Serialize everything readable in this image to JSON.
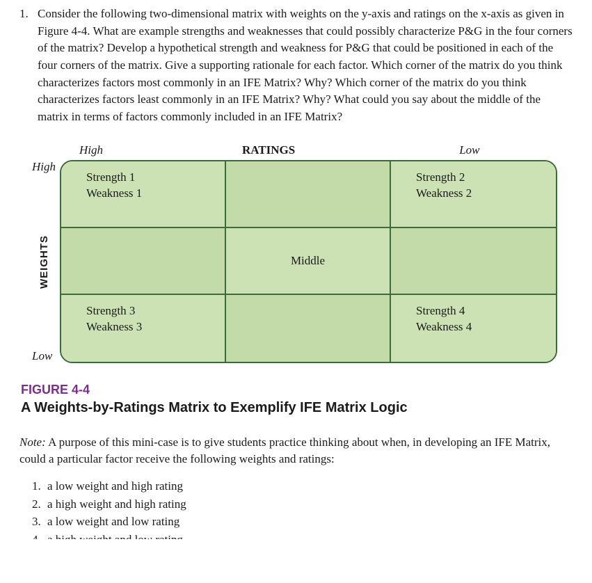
{
  "question": {
    "number": "1.",
    "text": "Consider the following two-dimensional matrix with weights on the y-axis and ratings on the x-axis as given in Figure 4-4. What are example strengths and weaknesses that could possibly characterize P&G in the four corners of the matrix? Develop a hypothetical strength and weakness for P&G that could be positioned in each of the four corners of the matrix. Give a supporting rationale for each factor. Which corner of the matrix do you think characterizes factors most commonly in an IFE Matrix? Why? Which corner of the matrix do you think characterizes factors least commonly in an IFE Matrix? Why? What could you say about the middle of the matrix in terms of factors commonly included in an IFE Matrix?"
  },
  "matrix": {
    "ratings_high": "High",
    "ratings_title": "RATINGS",
    "ratings_low": "Low",
    "weights_high": "High",
    "weights_label": "WEIGHTS",
    "weights_low": "Low",
    "colors": {
      "cell_a": "#cde2b4",
      "cell_b": "#c3dba8",
      "border": "#3a6b3a"
    },
    "cells": {
      "tl_s": "Strength 1",
      "tl_w": "Weakness 1",
      "tr_s": "Strength 2",
      "tr_w": "Weakness 2",
      "middle": "Middle",
      "bl_s": "Strength 3",
      "bl_w": "Weakness 3",
      "br_s": "Strength 4",
      "br_w": "Weakness 4"
    }
  },
  "figure": {
    "number": "FIGURE 4-4",
    "number_color": "#7b2e8e",
    "title": "A Weights-by-Ratings Matrix to Exemplify IFE Matrix Logic"
  },
  "note": {
    "label": "Note:",
    "text": " A purpose of this mini-case is to give students practice thinking about when, in developing an IFE Matrix, could a particular factor receive the following weights and ratings:",
    "items": [
      "a low weight and high rating",
      "a high weight and high rating",
      "a low weight and low rating",
      "a high weight and low rating"
    ]
  }
}
